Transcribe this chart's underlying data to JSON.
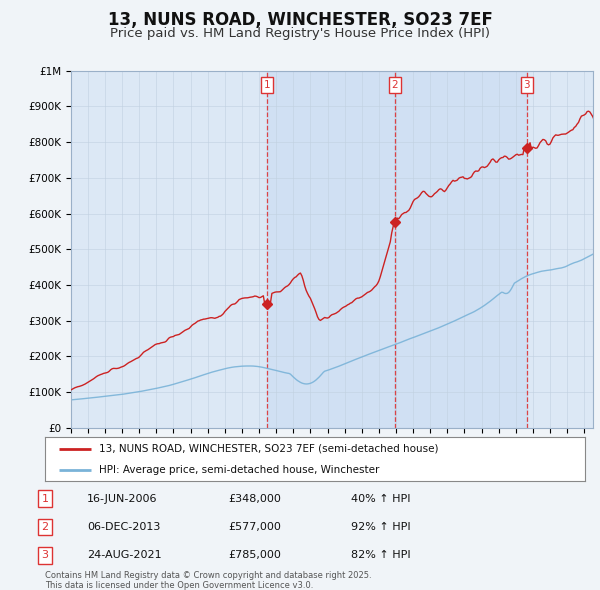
{
  "title": "13, NUNS ROAD, WINCHESTER, SO23 7EF",
  "subtitle": "Price paid vs. HM Land Registry's House Price Index (HPI)",
  "title_fontsize": 12,
  "subtitle_fontsize": 9.5,
  "ylim": [
    0,
    1000000
  ],
  "xlim_start": 1995.0,
  "xlim_end": 2025.5,
  "hpi_color": "#7ab3d8",
  "price_color": "#cc2222",
  "vline_color": "#dd3333",
  "background_color": "#f0f4f8",
  "plot_bg_color": "#dce8f5",
  "grid_color": "#c0d0e0",
  "legend_label_price": "13, NUNS ROAD, WINCHESTER, SO23 7EF (semi-detached house)",
  "legend_label_hpi": "HPI: Average price, semi-detached house, Winchester",
  "sales": [
    {
      "label": "1",
      "date_str": "16-JUN-2006",
      "year": 2006.46,
      "price": 348000,
      "hpi_pct": "40% ↑ HPI"
    },
    {
      "label": "2",
      "date_str": "06-DEC-2013",
      "year": 2013.93,
      "price": 577000,
      "hpi_pct": "92% ↑ HPI"
    },
    {
      "label": "3",
      "date_str": "24-AUG-2021",
      "year": 2021.64,
      "price": 785000,
      "hpi_pct": "82% ↑ HPI"
    }
  ],
  "footer_line1": "Contains HM Land Registry data © Crown copyright and database right 2025.",
  "footer_line2": "This data is licensed under the Open Government Licence v3.0."
}
